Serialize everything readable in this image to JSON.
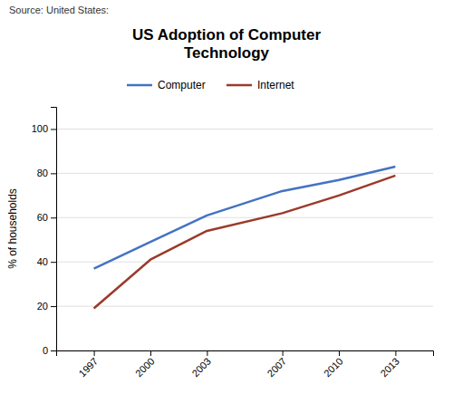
{
  "chart_data": {
    "type": "line",
    "title": "US Adoption of Computer\nTechnology",
    "annotations": [
      "Source: United States:"
    ],
    "y_label": "% of households",
    "x": [
      1997,
      2000,
      2003,
      2007,
      2010,
      2013
    ],
    "series": [
      {
        "name": "Computer",
        "color": "#4472C4",
        "values": [
          37,
          49,
          61,
          72,
          77,
          83
        ]
      },
      {
        "name": "Internet",
        "color": "#9B3A2A",
        "values": [
          19,
          41,
          54,
          62,
          70,
          79
        ]
      }
    ],
    "xlim": [
      1995,
      2015
    ],
    "xticks": [
      1997,
      2000,
      2003,
      2007,
      2010,
      2013
    ],
    "ylim": [
      0,
      110
    ],
    "yticks": [
      0,
      20,
      40,
      60,
      80,
      100
    ],
    "grid": true,
    "legend": "top"
  }
}
